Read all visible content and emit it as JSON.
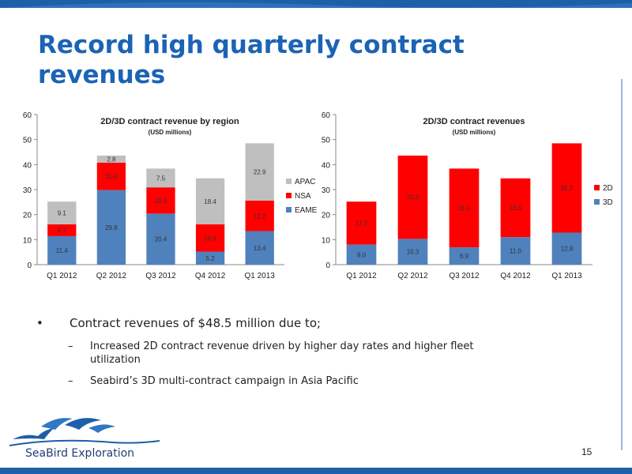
{
  "slide": {
    "title": "Record high quarterly contract revenues",
    "page_number": "15",
    "logo_text": "SeaBird Exploration",
    "bullet": "Contract revenues of $48.5 million due to;",
    "sub_bullets": [
      "Increased 2D contract revenue driven by higher day rates and higher fleet utilization",
      "Seabird’s 3D multi-contract campaign in Asia Pacific"
    ],
    "colors": {
      "title": "#1b63b5",
      "band": "#1f5fa8"
    }
  },
  "chart_data": [
    {
      "type": "bar",
      "stacked": true,
      "title": "2D/3D contract revenue by region",
      "subtitle": "(USD millions)",
      "categories": [
        "Q1 2012",
        "Q2 2012",
        "Q3 2012",
        "Q4 2012",
        "Q1 2013"
      ],
      "series": [
        {
          "name": "EAME",
          "color": "#4f81bd",
          "values": [
            11.4,
            29.8,
            20.4,
            5.2,
            13.4
          ]
        },
        {
          "name": "NSA",
          "color": "#ff0000",
          "values": [
            4.7,
            11.0,
            10.5,
            10.9,
            12.2
          ]
        },
        {
          "name": "APAC",
          "color": "#bfbfbf",
          "values": [
            9.1,
            2.8,
            7.5,
            18.4,
            22.9
          ]
        }
      ],
      "ylim": [
        0,
        60
      ],
      "yticks": [
        0,
        10,
        20,
        30,
        40,
        50,
        60
      ],
      "grid": false,
      "legend": "right"
    },
    {
      "type": "bar",
      "stacked": true,
      "title": "2D/3D contract revenues",
      "subtitle": "(USD millions)",
      "categories": [
        "Q1 2012",
        "Q2 2012",
        "Q3 2012",
        "Q4 2012",
        "Q1 2013"
      ],
      "series": [
        {
          "name": "3D",
          "color": "#4f81bd",
          "values": [
            8.0,
            10.3,
            6.9,
            11.0,
            12.8
          ]
        },
        {
          "name": "2D",
          "color": "#ff0000",
          "values": [
            17.2,
            33.3,
            31.5,
            23.5,
            35.7
          ]
        }
      ],
      "ylim": [
        0,
        60
      ],
      "yticks": [
        0,
        10,
        20,
        30,
        40,
        50,
        60
      ],
      "grid": false,
      "legend": "right"
    }
  ]
}
